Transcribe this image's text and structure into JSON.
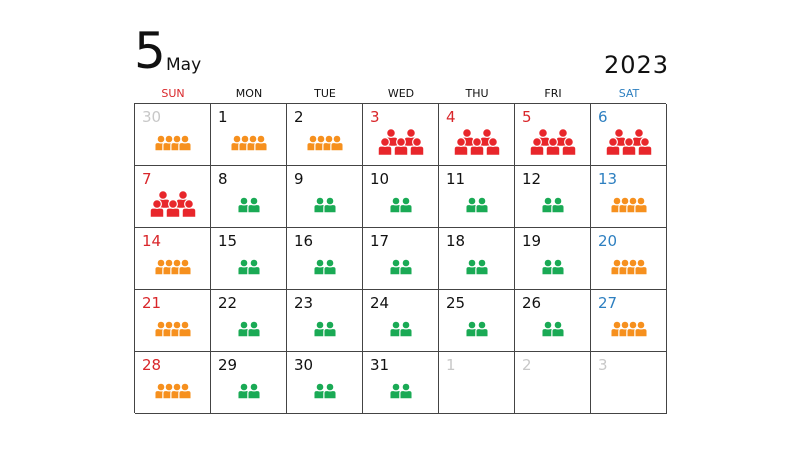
{
  "header": {
    "month_number": "5",
    "month_name": "May",
    "year": "2023"
  },
  "weekdays": [
    "SUN",
    "MON",
    "TUE",
    "WED",
    "THU",
    "FRI",
    "SAT"
  ],
  "legend_colors": {
    "crowded": "#e8262b",
    "busy": "#f6901e",
    "normal": "#1aaa55"
  },
  "days": [
    {
      "label": "30",
      "tone": "grey",
      "icon": "busy"
    },
    {
      "label": "1",
      "tone": "black",
      "icon": "busy"
    },
    {
      "label": "2",
      "tone": "black",
      "icon": "busy"
    },
    {
      "label": "3",
      "tone": "red",
      "icon": "crowded"
    },
    {
      "label": "4",
      "tone": "red",
      "icon": "crowded"
    },
    {
      "label": "5",
      "tone": "red",
      "icon": "crowded"
    },
    {
      "label": "6",
      "tone": "blue",
      "icon": "crowded"
    },
    {
      "label": "7",
      "tone": "red",
      "icon": "crowded"
    },
    {
      "label": "8",
      "tone": "black",
      "icon": "normal"
    },
    {
      "label": "9",
      "tone": "black",
      "icon": "normal"
    },
    {
      "label": "10",
      "tone": "black",
      "icon": "normal"
    },
    {
      "label": "11",
      "tone": "black",
      "icon": "normal"
    },
    {
      "label": "12",
      "tone": "black",
      "icon": "normal"
    },
    {
      "label": "13",
      "tone": "blue",
      "icon": "busy"
    },
    {
      "label": "14",
      "tone": "red",
      "icon": "busy"
    },
    {
      "label": "15",
      "tone": "black",
      "icon": "normal"
    },
    {
      "label": "16",
      "tone": "black",
      "icon": "normal"
    },
    {
      "label": "17",
      "tone": "black",
      "icon": "normal"
    },
    {
      "label": "18",
      "tone": "black",
      "icon": "normal"
    },
    {
      "label": "19",
      "tone": "black",
      "icon": "normal"
    },
    {
      "label": "20",
      "tone": "blue",
      "icon": "busy"
    },
    {
      "label": "21",
      "tone": "red",
      "icon": "busy"
    },
    {
      "label": "22",
      "tone": "black",
      "icon": "normal"
    },
    {
      "label": "23",
      "tone": "black",
      "icon": "normal"
    },
    {
      "label": "24",
      "tone": "black",
      "icon": "normal"
    },
    {
      "label": "25",
      "tone": "black",
      "icon": "normal"
    },
    {
      "label": "26",
      "tone": "black",
      "icon": "normal"
    },
    {
      "label": "27",
      "tone": "blue",
      "icon": "busy"
    },
    {
      "label": "28",
      "tone": "red",
      "icon": "busy"
    },
    {
      "label": "29",
      "tone": "black",
      "icon": "normal"
    },
    {
      "label": "30",
      "tone": "black",
      "icon": "normal"
    },
    {
      "label": "31",
      "tone": "black",
      "icon": "normal"
    },
    {
      "label": "1",
      "tone": "grey",
      "icon": "none"
    },
    {
      "label": "2",
      "tone": "grey",
      "icon": "none"
    },
    {
      "label": "3",
      "tone": "grey",
      "icon": "none"
    }
  ]
}
